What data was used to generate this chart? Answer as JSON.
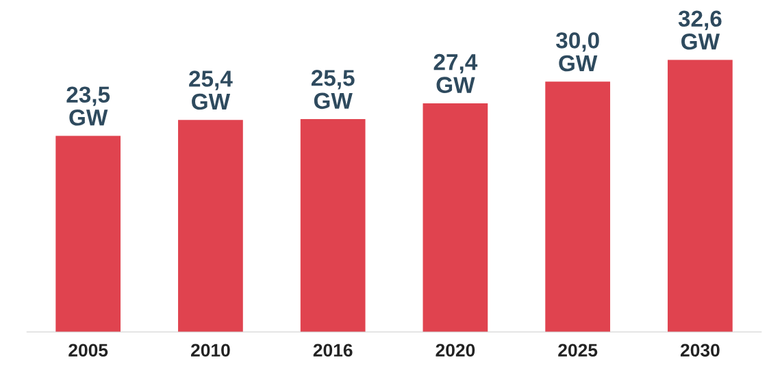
{
  "chart_data": {
    "type": "bar",
    "categories": [
      "2005",
      "2010",
      "2016",
      "2020",
      "2025",
      "2030"
    ],
    "values": [
      23.5,
      25.4,
      25.5,
      27.4,
      30.0,
      32.6
    ],
    "value_labels": [
      "23,5\nGW",
      "25,4\nGW",
      "25,5\nGW",
      "27,4\nGW",
      "30,0\nGW",
      "32,6\nGW"
    ],
    "color": "#e0434f",
    "grid": false
  }
}
